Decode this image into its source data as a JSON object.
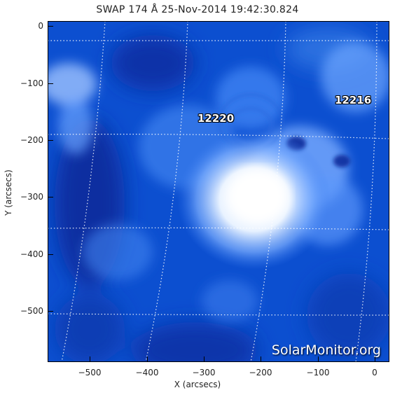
{
  "title": "SWAP 174 Å 25-Nov-2014 19:42:30.824",
  "xlabel": "X (arcsecs)",
  "ylabel": "Y (arcsecs)",
  "x_ticks": [
    "−500",
    "−400",
    "−300",
    "−200",
    "−100",
    "0"
  ],
  "y_ticks": [
    "0",
    "−100",
    "−200",
    "−300",
    "−400",
    "−500"
  ],
  "active_regions": [
    "12220",
    "12216"
  ],
  "watermark": "SolarMonitor.org",
  "colors": {
    "background": "#0a46c8",
    "highlight": "#ffffff"
  }
}
